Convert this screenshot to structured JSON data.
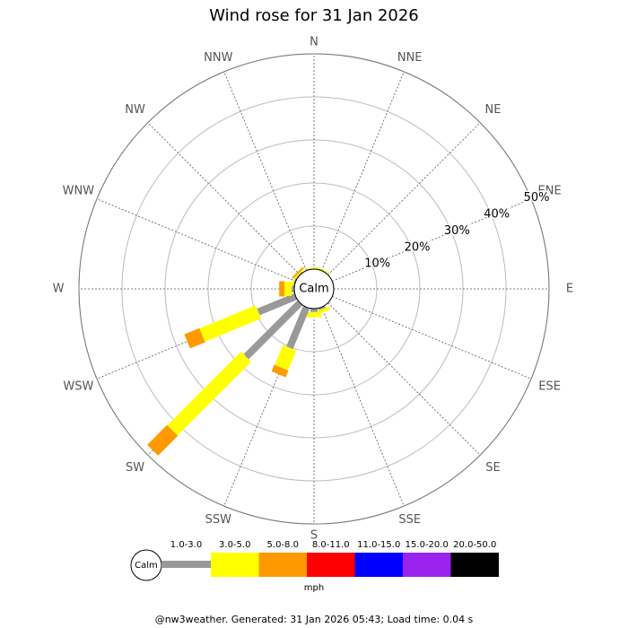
{
  "chart_data": {
    "type": "windrose",
    "title": "Wind rose for 31 Jan 2026",
    "categories": [
      "N",
      "NNE",
      "NE",
      "ENE",
      "E",
      "ESE",
      "SE",
      "SSE",
      "S",
      "SSW",
      "SW",
      "WSW",
      "W",
      "WNW",
      "NW",
      "NNW"
    ],
    "center_label": "Calm",
    "unit": "mph",
    "rlim": [
      0,
      50
    ],
    "rticks": [
      {
        "value": 10,
        "label": "10%"
      },
      {
        "value": 20,
        "label": "20%"
      },
      {
        "value": 30,
        "label": "30%"
      },
      {
        "value": 40,
        "label": "40%"
      },
      {
        "value": 50,
        "label": "50%"
      }
    ],
    "series": [
      {
        "name": "1.0-3.0",
        "color": "#999999",
        "values": [
          0,
          0,
          0,
          0,
          0,
          0,
          0,
          0.5,
          0.8,
          10.2,
          17.7,
          9.4,
          0.6,
          0.3,
          0.2,
          0
        ]
      },
      {
        "name": "3.0-5.0",
        "color": "#ffff00",
        "values": [
          0.3,
          0.3,
          0,
          0,
          0,
          0,
          0,
          0.8,
          1.2,
          5.0,
          24.2,
          14.1,
          1.7,
          0.4,
          0.3,
          0
        ]
      },
      {
        "name": "5.0-8.0",
        "color": "#ff9900",
        "values": [
          0,
          0,
          0,
          0,
          0,
          0,
          0,
          0,
          0,
          1.7,
          6.5,
          3.8,
          1.2,
          0,
          0.4,
          0
        ]
      },
      {
        "name": "8.0-11.0",
        "color": "#ff0000",
        "values": [
          0,
          0,
          0,
          0,
          0,
          0,
          0,
          0,
          0,
          0,
          0,
          0,
          0,
          0,
          0,
          0
        ]
      },
      {
        "name": "11.0-15.0",
        "color": "#0000ff",
        "values": [
          0,
          0,
          0,
          0,
          0,
          0,
          0,
          0,
          0,
          0,
          0,
          0,
          0,
          0,
          0,
          0
        ]
      },
      {
        "name": "15.0-20.0",
        "color": "#9922ee",
        "values": [
          0,
          0,
          0,
          0,
          0,
          0,
          0,
          0,
          0,
          0,
          0,
          0,
          0,
          0,
          0,
          0
        ]
      },
      {
        "name": "20.0-50.0",
        "color": "#000000",
        "values": [
          0,
          0,
          0,
          0,
          0,
          0,
          0,
          0,
          0,
          0,
          0,
          0,
          0,
          0,
          0,
          0
        ]
      }
    ],
    "footer": "@nw3weather. Generated: 31 Jan 2026 05:43; Load time: 0.04 s"
  }
}
